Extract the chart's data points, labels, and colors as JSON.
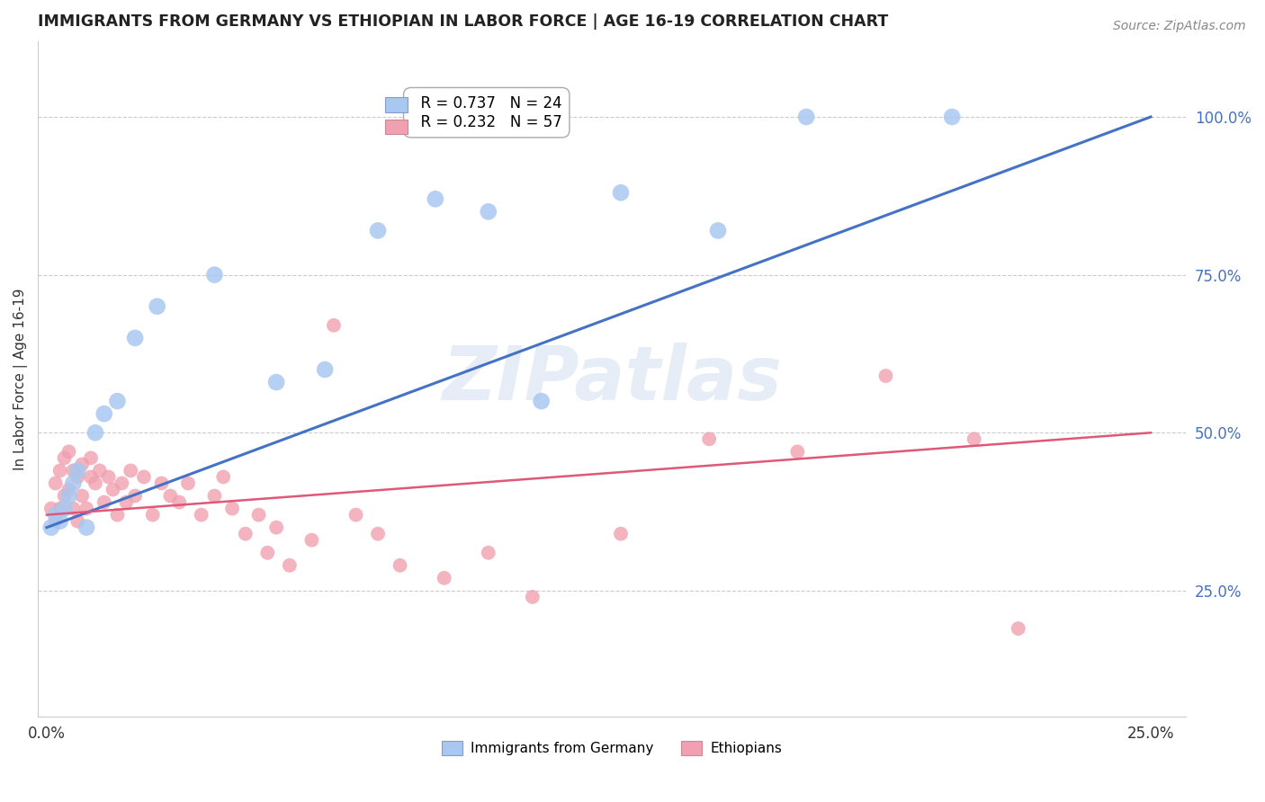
{
  "title": "IMMIGRANTS FROM GERMANY VS ETHIOPIAN IN LABOR FORCE | AGE 16-19 CORRELATION CHART",
  "source": "Source: ZipAtlas.com",
  "ylabel": "In Labor Force | Age 16-19",
  "germany_R": 0.737,
  "germany_N": 24,
  "ethiopia_R": 0.232,
  "ethiopia_N": 57,
  "germany_color": "#a8c8f0",
  "ethiopia_color": "#f0a0b0",
  "germany_line_color": "#4472c4",
  "ethiopia_line_color": "#e05878",
  "watermark": "ZIPatlas",
  "background_color": "#ffffff",
  "germany_scatter_x": [
    0.001,
    0.002,
    0.003,
    0.004,
    0.005,
    0.006,
    0.007,
    0.009,
    0.011,
    0.013,
    0.016,
    0.02,
    0.025,
    0.038,
    0.052,
    0.063,
    0.075,
    0.088,
    0.1,
    0.112,
    0.13,
    0.152,
    0.172,
    0.205
  ],
  "germany_scatter_y": [
    0.35,
    0.37,
    0.36,
    0.38,
    0.4,
    0.42,
    0.44,
    0.35,
    0.5,
    0.53,
    0.55,
    0.65,
    0.7,
    0.75,
    0.58,
    0.6,
    0.82,
    0.87,
    0.85,
    0.55,
    0.88,
    0.82,
    1.0,
    1.0
  ],
  "ethiopia_scatter_x": [
    0.001,
    0.002,
    0.002,
    0.003,
    0.003,
    0.004,
    0.004,
    0.005,
    0.005,
    0.006,
    0.006,
    0.007,
    0.007,
    0.008,
    0.008,
    0.009,
    0.01,
    0.01,
    0.011,
    0.012,
    0.013,
    0.014,
    0.015,
    0.016,
    0.017,
    0.018,
    0.019,
    0.02,
    0.022,
    0.024,
    0.026,
    0.028,
    0.03,
    0.032,
    0.035,
    0.038,
    0.04,
    0.042,
    0.045,
    0.048,
    0.05,
    0.052,
    0.055,
    0.06,
    0.065,
    0.07,
    0.075,
    0.08,
    0.09,
    0.1,
    0.11,
    0.13,
    0.15,
    0.17,
    0.19,
    0.21,
    0.22
  ],
  "ethiopia_scatter_y": [
    0.38,
    0.36,
    0.42,
    0.38,
    0.44,
    0.4,
    0.46,
    0.41,
    0.47,
    0.38,
    0.44,
    0.36,
    0.43,
    0.4,
    0.45,
    0.38,
    0.43,
    0.46,
    0.42,
    0.44,
    0.39,
    0.43,
    0.41,
    0.37,
    0.42,
    0.39,
    0.44,
    0.4,
    0.43,
    0.37,
    0.42,
    0.4,
    0.39,
    0.42,
    0.37,
    0.4,
    0.43,
    0.38,
    0.34,
    0.37,
    0.31,
    0.35,
    0.29,
    0.33,
    0.67,
    0.37,
    0.34,
    0.29,
    0.27,
    0.31,
    0.24,
    0.34,
    0.49,
    0.47,
    0.59,
    0.49,
    0.19
  ],
  "xlim_min": -0.002,
  "xlim_max": 0.258,
  "ylim_min": 0.05,
  "ylim_max": 1.12,
  "yticks": [
    0.25,
    0.5,
    0.75,
    1.0
  ],
  "ytick_labels": [
    "25.0%",
    "50.0%",
    "75.0%",
    "100.0%"
  ],
  "xticks": [
    0.0,
    0.05,
    0.1,
    0.15,
    0.2,
    0.25
  ],
  "xtick_labels": [
    "0.0%",
    "",
    "",
    "",
    "",
    "25.0%"
  ]
}
